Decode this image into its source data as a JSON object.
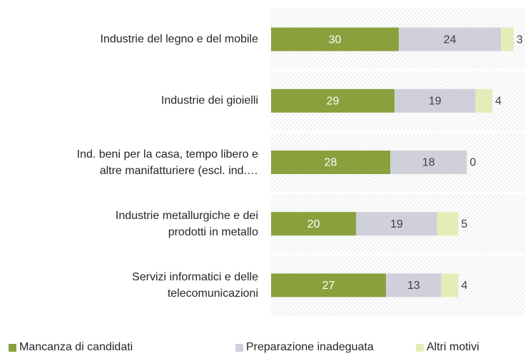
{
  "chart_data": {
    "type": "stacked-barh",
    "categories": [
      "Industrie del legno e del mobile",
      "Industrie dei gioielli",
      "Ind. beni per la casa, tempo libero e\naltre manifatturiere (escl. ind.…",
      "Industrie metallurgiche e dei\nprodotti in metallo",
      "Servizi informatici e delle\ntelecomunicazioni"
    ],
    "series": [
      {
        "name": "Mancanza di candidati",
        "color": "#8aa03c",
        "values": [
          30,
          29,
          28,
          20,
          27
        ]
      },
      {
        "name": "Preparazione inadeguata",
        "color": "#cfd0da",
        "values": [
          24,
          19,
          18,
          19,
          13
        ]
      },
      {
        "name": "Altri motivi",
        "color": "#e3edb7",
        "values": [
          3,
          4,
          0,
          5,
          4
        ]
      }
    ],
    "xlim": [
      0,
      60
    ],
    "legend": "bottom"
  }
}
